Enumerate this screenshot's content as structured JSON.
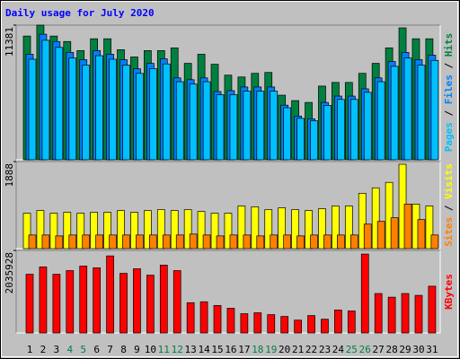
{
  "chart_data": [
    {
      "type": "bar",
      "title": "Daily usage for July 2020",
      "ylim": [
        0,
        11381
      ],
      "yticks": [
        11381
      ],
      "legend_separator": " / ",
      "series": [
        {
          "name": "Pages",
          "color": "#00c0ff",
          "values": [
            8500,
            10100,
            9500,
            8600,
            8000,
            8800,
            8500,
            8000,
            7300,
            7700,
            8100,
            6600,
            6400,
            6600,
            5500,
            5500,
            5800,
            5800,
            5800,
            4400,
            3500,
            3300,
            4600,
            5100,
            5100,
            5700,
            6600,
            7900,
            8600,
            8000,
            8400
          ]
        },
        {
          "name": "Files",
          "color": "#0080ff",
          "values": [
            8920,
            10612,
            9997,
            9074,
            8459,
            9228,
            8920,
            8459,
            7690,
            8151,
            8536,
            6921,
            6767,
            6921,
            5767,
            5844,
            6152,
            6152,
            6152,
            4614,
            3691,
            3460,
            4845,
            5383,
            5383,
            5998,
            6921,
            8305,
            9074,
            8459,
            8843
          ]
        },
        {
          "name": "Hits",
          "color": "#008040",
          "values": [
            10458,
            11381,
            10458,
            9997,
            9228,
            10228,
            10228,
            9305,
            8690,
            9228,
            9228,
            9459,
            8151,
            8920,
            8074,
            7152,
            6998,
            7305,
            7382,
            5460,
            4998,
            4845,
            6229,
            6536,
            6536,
            7305,
            8151,
            9459,
            11150,
            10228,
            10228
          ]
        }
      ]
    },
    {
      "type": "bar",
      "ylim": [
        0,
        1888
      ],
      "yticks": [
        1888
      ],
      "legend_separator": " / ",
      "series": [
        {
          "name": "Sites",
          "color": "#ff8000",
          "values": [
            295,
            295,
            275,
            295,
            295,
            295,
            295,
            295,
            295,
            295,
            295,
            295,
            315,
            295,
            275,
            295,
            295,
            275,
            295,
            295,
            275,
            295,
            295,
            295,
            295,
            531,
            590,
            669,
            964,
            629,
            295
          ]
        },
        {
          "name": "Visits",
          "color": "#ffff00",
          "values": [
            767,
            826,
            767,
            787,
            767,
            787,
            787,
            826,
            787,
            826,
            846,
            826,
            846,
            806,
            767,
            767,
            924,
            905,
            846,
            885,
            846,
            826,
            865,
            924,
            924,
            1200,
            1318,
            1436,
            1829,
            964,
            924
          ]
        }
      ]
    },
    {
      "type": "bar",
      "ylim": [
        0,
        2035928
      ],
      "yticks": [
        2035928
      ],
      "categories": [
        "1",
        "2",
        "3",
        "4",
        "5",
        "6",
        "7",
        "8",
        "9",
        "10",
        "11",
        "12",
        "13",
        "14",
        "15",
        "16",
        "17",
        "18",
        "19",
        "20",
        "21",
        "22",
        "23",
        "24",
        "25",
        "26",
        "27",
        "28",
        "29",
        "30",
        "31"
      ],
      "category_colors": [
        "#000000",
        "#000000",
        "#000000",
        "#008040",
        "#008040",
        "#000000",
        "#000000",
        "#000000",
        "#000000",
        "#000000",
        "#008040",
        "#008040",
        "#000000",
        "#000000",
        "#000000",
        "#000000",
        "#000000",
        "#008040",
        "#008040",
        "#000000",
        "#000000",
        "#000000",
        "#000000",
        "#000000",
        "#008040",
        "#008040",
        "#000000",
        "#000000",
        "#000000",
        "#000000",
        "#000000"
      ],
      "series": [
        {
          "name": "KBytes",
          "color": "#ff0000",
          "values": [
            1447771,
            1628742,
            1447771,
            1538257,
            1651364,
            1606121,
            1900199,
            1470392,
            1583499,
            1425150,
            1673985,
            1538257,
            746507,
            769128,
            678643,
            610778,
            475050,
            497671,
            452428,
            407186,
            316700,
            429807,
            339321,
            565536,
            542914,
            1945443,
            972832,
            882236,
            972832,
            927478,
            1153693
          ]
        }
      ]
    }
  ]
}
